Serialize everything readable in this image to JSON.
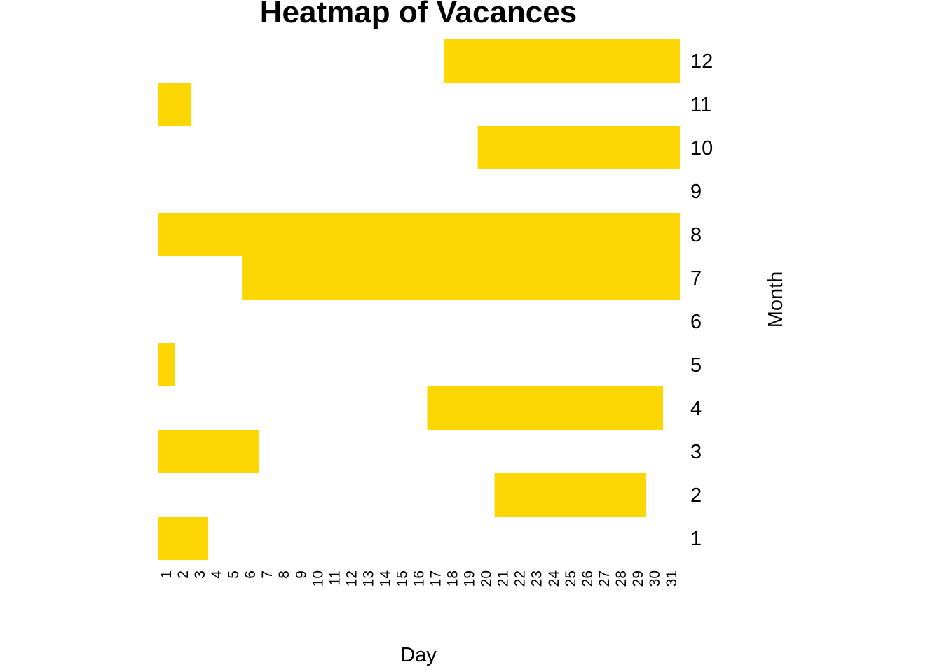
{
  "chart_data": {
    "type": "heatmap",
    "title": "Heatmap of Vacances",
    "xlabel": "Day",
    "ylabel": "Month",
    "x_categories": [
      "1",
      "2",
      "3",
      "4",
      "5",
      "6",
      "7",
      "8",
      "9",
      "10",
      "11",
      "12",
      "13",
      "14",
      "15",
      "16",
      "17",
      "18",
      "19",
      "20",
      "21",
      "22",
      "23",
      "24",
      "25",
      "26",
      "27",
      "28",
      "29",
      "30",
      "31"
    ],
    "y_categories": [
      "1",
      "2",
      "3",
      "4",
      "5",
      "6",
      "7",
      "8",
      "9",
      "10",
      "11",
      "12"
    ],
    "y_axis_position": "right",
    "grid": false,
    "legend": "none",
    "colors": {
      "vacation": "#FCD703",
      "background": "#FFFFFF"
    },
    "ranges": [
      {
        "month": 1,
        "start_day": 1,
        "end_day": 3
      },
      {
        "month": 2,
        "start_day": 21,
        "end_day": 29
      },
      {
        "month": 3,
        "start_day": 1,
        "end_day": 6
      },
      {
        "month": 4,
        "start_day": 17,
        "end_day": 30
      },
      {
        "month": 5,
        "start_day": 1,
        "end_day": 1
      },
      {
        "month": 7,
        "start_day": 6,
        "end_day": 31
      },
      {
        "month": 8,
        "start_day": 1,
        "end_day": 31
      },
      {
        "month": 10,
        "start_day": 20,
        "end_day": 31
      },
      {
        "month": 11,
        "start_day": 1,
        "end_day": 2
      },
      {
        "month": 12,
        "start_day": 18,
        "end_day": 31
      }
    ]
  }
}
